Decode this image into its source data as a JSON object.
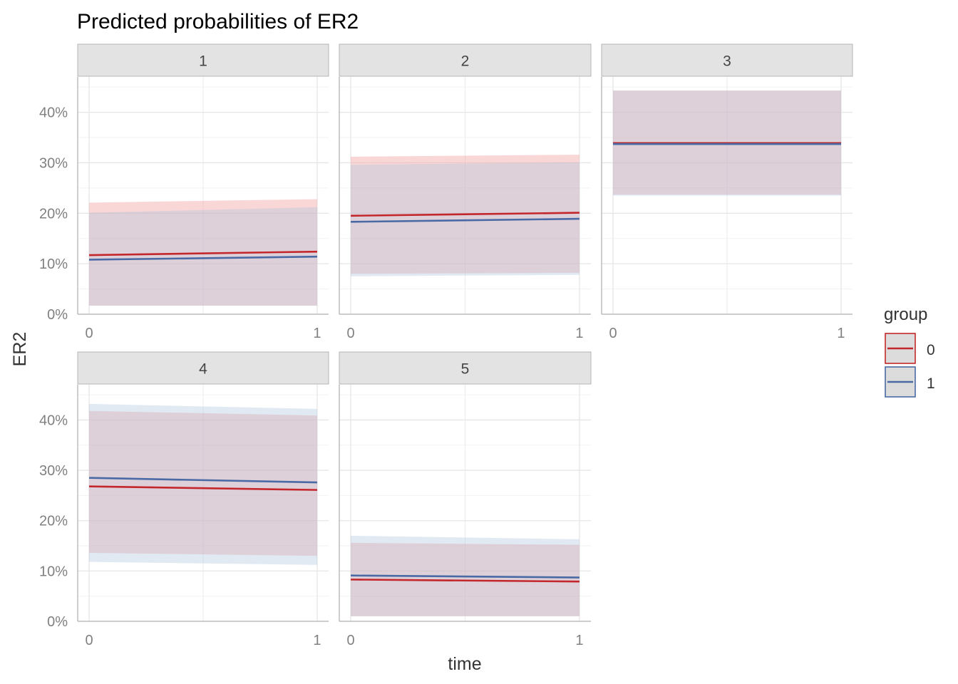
{
  "chart_data": {
    "type": "area",
    "title": "Predicted probabilities of ER2",
    "xlabel": "time",
    "ylabel": "ER2",
    "x_ticks": [
      "0",
      "1"
    ],
    "y_ticks": [
      "0%",
      "10%",
      "20%",
      "30%",
      "40%"
    ],
    "y_tick_values": [
      0,
      0.1,
      0.2,
      0.3,
      0.4
    ],
    "xlim": [
      0,
      1
    ],
    "ylim": [
      0,
      0.47
    ],
    "grid": true,
    "legend": {
      "title": "group",
      "placement": "right",
      "entries": [
        {
          "label": "0",
          "color": "#c3272b",
          "fill": "#f4a6a6"
        },
        {
          "label": "1",
          "color": "#4a6aa5",
          "fill": "#a9c2dc"
        }
      ]
    },
    "panels": [
      {
        "label": "1",
        "series": [
          {
            "name": "0",
            "x": [
              0,
              1
            ],
            "y": [
              0.117,
              0.124
            ],
            "lower": [
              0.017,
              0.017
            ],
            "upper": [
              0.221,
              0.228
            ]
          },
          {
            "name": "1",
            "x": [
              0,
              1
            ],
            "y": [
              0.108,
              0.114
            ],
            "lower": [
              0.017,
              0.017
            ],
            "upper": [
              0.201,
              0.212
            ]
          }
        ]
      },
      {
        "label": "2",
        "series": [
          {
            "name": "0",
            "x": [
              0,
              1
            ],
            "y": [
              0.195,
              0.201
            ],
            "lower": [
              0.08,
              0.082
            ],
            "upper": [
              0.312,
              0.316
            ]
          },
          {
            "name": "1",
            "x": [
              0,
              1
            ],
            "y": [
              0.183,
              0.189
            ],
            "lower": [
              0.075,
              0.078
            ],
            "upper": [
              0.296,
              0.301
            ]
          }
        ]
      },
      {
        "label": "3",
        "series": [
          {
            "name": "0",
            "x": [
              0,
              1
            ],
            "y": [
              0.339,
              0.339
            ],
            "lower": [
              0.237,
              0.237
            ],
            "upper": [
              0.443,
              0.443
            ]
          },
          {
            "name": "1",
            "x": [
              0,
              1
            ],
            "y": [
              0.337,
              0.337
            ],
            "lower": [
              0.235,
              0.235
            ],
            "upper": [
              0.443,
              0.443
            ]
          }
        ]
      },
      {
        "label": "4",
        "series": [
          {
            "name": "0",
            "x": [
              0,
              1
            ],
            "y": [
              0.268,
              0.261
            ],
            "lower": [
              0.136,
              0.13
            ],
            "upper": [
              0.418,
              0.409
            ]
          },
          {
            "name": "1",
            "x": [
              0,
              1
            ],
            "y": [
              0.285,
              0.276
            ],
            "lower": [
              0.118,
              0.112
            ],
            "upper": [
              0.432,
              0.422
            ]
          }
        ]
      },
      {
        "label": "5",
        "series": [
          {
            "name": "0",
            "x": [
              0,
              1
            ],
            "y": [
              0.083,
              0.079
            ],
            "lower": [
              0.01,
              0.01
            ],
            "upper": [
              0.156,
              0.152
            ]
          },
          {
            "name": "1",
            "x": [
              0,
              1
            ],
            "y": [
              0.091,
              0.087
            ],
            "lower": [
              0.01,
              0.01
            ],
            "upper": [
              0.17,
              0.163
            ]
          }
        ]
      }
    ]
  }
}
